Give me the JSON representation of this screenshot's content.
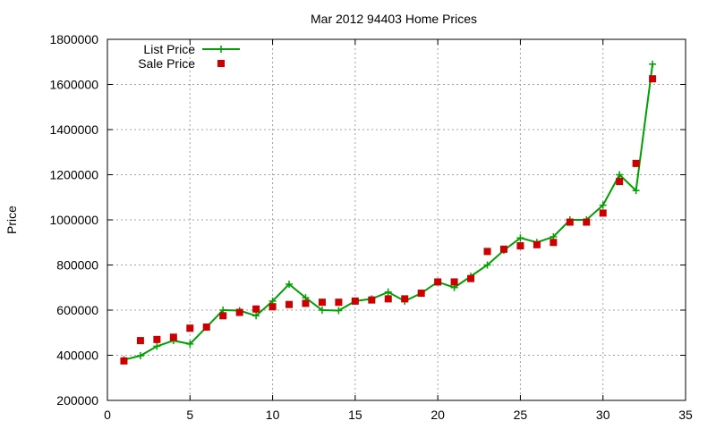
{
  "chart_data": {
    "type": "line",
    "title": "Mar 2012 94403 Home Prices",
    "xlabel": "",
    "ylabel": "Price",
    "xlim": [
      0,
      35
    ],
    "ylim": [
      200000,
      1800000
    ],
    "xticks": [
      0,
      5,
      10,
      15,
      20,
      25,
      30,
      35
    ],
    "yticks": [
      200000,
      400000,
      600000,
      800000,
      1000000,
      1200000,
      1400000,
      1600000,
      1800000
    ],
    "grid": true,
    "legend_position": "top-left",
    "series": [
      {
        "name": "List Price",
        "style": "line+cross",
        "color": "#00a000",
        "x": [
          1,
          2,
          3,
          4,
          5,
          6,
          7,
          8,
          9,
          10,
          11,
          12,
          13,
          14,
          15,
          16,
          17,
          18,
          19,
          20,
          21,
          22,
          23,
          24,
          25,
          26,
          27,
          28,
          29,
          30,
          31,
          32,
          33
        ],
        "y": [
          380000,
          398000,
          440000,
          465000,
          450000,
          525000,
          600000,
          598000,
          575000,
          640000,
          715000,
          655000,
          600000,
          598000,
          640000,
          650000,
          680000,
          640000,
          675000,
          725000,
          700000,
          750000,
          800000,
          865000,
          920000,
          900000,
          925000,
          1000000,
          1000000,
          1065000,
          1200000,
          1130000,
          1690000
        ]
      },
      {
        "name": "Sale Price",
        "style": "square",
        "color": "#cc0000",
        "x": [
          1,
          2,
          3,
          4,
          5,
          6,
          7,
          8,
          9,
          10,
          11,
          12,
          13,
          14,
          15,
          16,
          17,
          18,
          19,
          20,
          21,
          22,
          23,
          24,
          25,
          26,
          27,
          28,
          29,
          30,
          31,
          32,
          33
        ],
        "y": [
          375000,
          465000,
          470000,
          480000,
          520000,
          525000,
          575000,
          590000,
          605000,
          615000,
          625000,
          630000,
          635000,
          635000,
          640000,
          645000,
          650000,
          650000,
          675000,
          725000,
          725000,
          740000,
          860000,
          870000,
          885000,
          890000,
          900000,
          990000,
          990000,
          1030000,
          1170000,
          1250000,
          1625000
        ]
      }
    ]
  }
}
